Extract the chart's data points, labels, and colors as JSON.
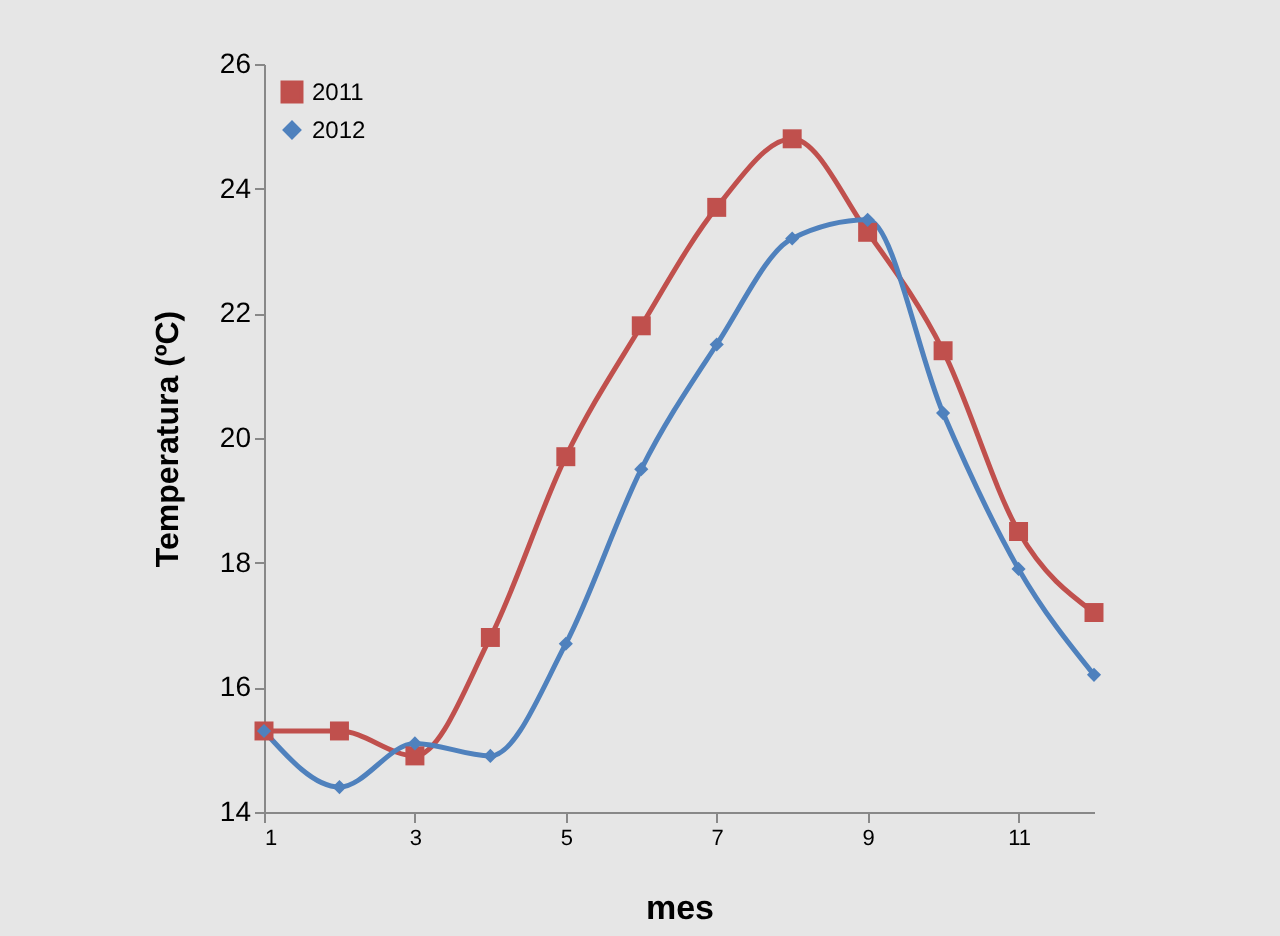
{
  "chart_data": {
    "type": "line",
    "xlabel": "mes",
    "ylabel": "Temperatura (ºC)",
    "x": [
      1,
      2,
      3,
      4,
      5,
      6,
      7,
      8,
      9,
      10,
      11,
      12
    ],
    "xlim": [
      1,
      12
    ],
    "xticks": [
      1,
      3,
      5,
      7,
      9,
      11
    ],
    "ylim": [
      14,
      26
    ],
    "yticks": [
      14,
      16,
      18,
      20,
      22,
      24,
      26
    ],
    "series": [
      {
        "name": "2011",
        "color": "#c0504d",
        "marker": "square",
        "values": [
          15.3,
          15.3,
          14.9,
          16.8,
          19.7,
          21.8,
          23.7,
          24.8,
          23.3,
          21.4,
          18.5,
          17.2
        ]
      },
      {
        "name": "2012",
        "color": "#4f81bd",
        "marker": "diamond",
        "values": [
          15.3,
          14.4,
          15.1,
          14.9,
          16.7,
          19.5,
          21.5,
          23.2,
          23.5,
          20.4,
          17.9,
          16.2
        ]
      }
    ],
    "grid": false,
    "legend": "top left",
    "line_style": "solid"
  }
}
